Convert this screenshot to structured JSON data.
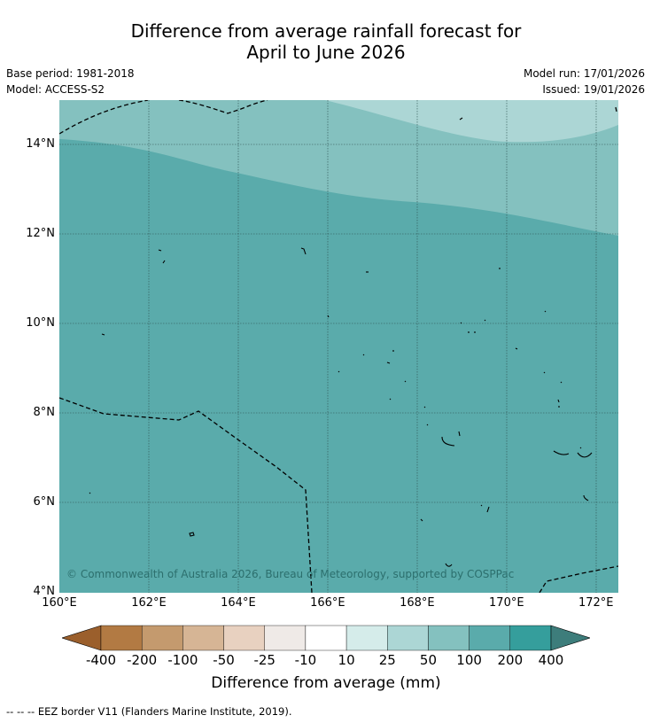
{
  "title": {
    "line1": "Difference from average rainfall forecast for",
    "line2": "April to June 2026"
  },
  "meta": {
    "base_period": "Base period: 1981-2018",
    "model": "Model: ACCESS-S2",
    "model_run": "Model run: 17/01/2026",
    "issued": "Issued: 19/01/2026"
  },
  "map": {
    "lat_labels": [
      {
        "label": "14°N",
        "value": 14
      },
      {
        "label": "12°N",
        "value": 12
      },
      {
        "label": "10°N",
        "value": 10
      },
      {
        "label": "8°N",
        "value": 8
      },
      {
        "label": "6°N",
        "value": 6
      },
      {
        "label": "4°N",
        "value": 4
      }
    ],
    "lon_labels": [
      {
        "label": "160°E",
        "value": 160
      },
      {
        "label": "162°E",
        "value": 162
      },
      {
        "label": "164°E",
        "value": 164
      },
      {
        "label": "166°E",
        "value": 166
      },
      {
        "label": "168°E",
        "value": 168
      },
      {
        "label": "170°E",
        "value": 170
      },
      {
        "label": "172°E",
        "value": 172
      }
    ],
    "lat_range": [
      4,
      15
    ],
    "lon_range": [
      160,
      172.5
    ],
    "copyright": "© Commonwealth of Australia 2026, Bureau of Meteorology, supported by COSPPac",
    "zone_colors": {
      "lightest": "#acd6d5",
      "light": "#84c1bf",
      "main": "#5aabab"
    }
  },
  "colorbar": {
    "ticks": [
      "-400",
      "-200",
      "-100",
      "-50",
      "-25",
      "-10",
      "10",
      "25",
      "50",
      "100",
      "200",
      "400"
    ],
    "colors": [
      "#9b5f2c",
      "#b27a43",
      "#c49a6e",
      "#d6b595",
      "#e8d1c0",
      "#efeae7",
      "#ffffff",
      "#d5ecea",
      "#acd6d5",
      "#84c1bf",
      "#5aabab",
      "#359e9c",
      "#3d7d7b"
    ],
    "title": "Difference from average (mm)"
  },
  "legend": {
    "text": "--  --  -- EEZ border V11 (Flanders Marine Institute, 2019)."
  }
}
